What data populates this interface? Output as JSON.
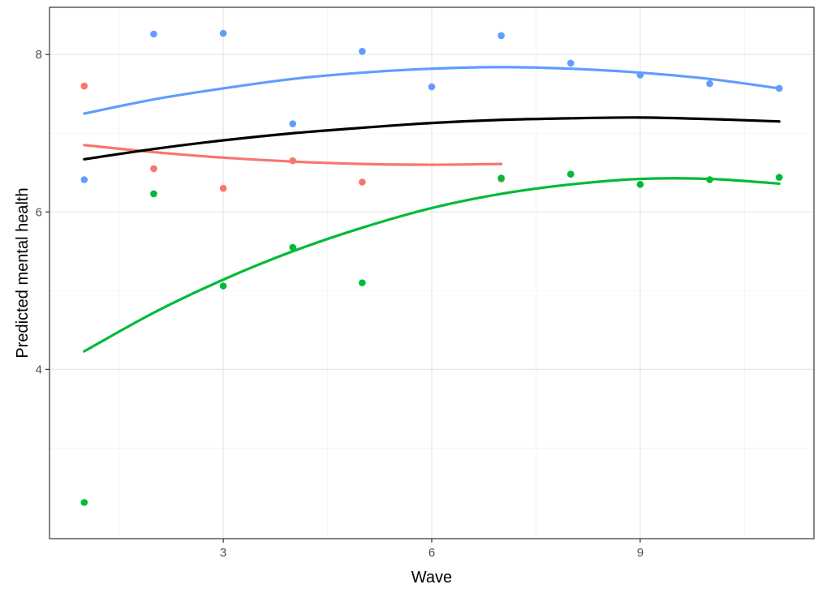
{
  "chart_data": {
    "type": "scatter",
    "title": "",
    "xlabel": "Wave",
    "ylabel": "Predicted mental health",
    "xlim": [
      0.5,
      11.5
    ],
    "ylim": [
      1.85,
      8.6
    ],
    "x_ticks": [
      3,
      6,
      9
    ],
    "x_tick_labels": [
      "3",
      "6",
      "9"
    ],
    "y_ticks": [
      4,
      6,
      8
    ],
    "y_tick_labels": [
      "4",
      "6",
      "8"
    ],
    "x_minor_ticks": [
      1.5,
      4.5,
      7.5,
      10.5
    ],
    "y_minor_ticks": [
      3,
      5,
      7
    ],
    "grid": true,
    "legend": "none",
    "series": [
      {
        "color": "#F8766D",
        "points": [
          [
            1,
            7.6
          ],
          [
            2,
            6.55
          ],
          [
            3,
            6.3
          ],
          [
            4,
            6.65
          ],
          [
            5,
            6.38
          ],
          [
            7,
            6.42
          ]
        ],
        "fit": [
          [
            1,
            6.85
          ],
          [
            2,
            6.76
          ],
          [
            3,
            6.69
          ],
          [
            4,
            6.64
          ],
          [
            5,
            6.61
          ],
          [
            6,
            6.6
          ],
          [
            7,
            6.61
          ]
        ]
      },
      {
        "color": "#619CFF",
        "points": [
          [
            1,
            6.41
          ],
          [
            2,
            8.26
          ],
          [
            3,
            8.27
          ],
          [
            4,
            7.12
          ],
          [
            5,
            8.04
          ],
          [
            6,
            7.59
          ],
          [
            7,
            8.24
          ],
          [
            8,
            7.89
          ],
          [
            9,
            7.74
          ],
          [
            10,
            7.63
          ],
          [
            11,
            7.57
          ]
        ],
        "fit": [
          [
            1,
            7.25
          ],
          [
            2,
            7.43
          ],
          [
            3,
            7.57
          ],
          [
            4,
            7.69
          ],
          [
            5,
            7.77
          ],
          [
            6,
            7.82
          ],
          [
            7,
            7.84
          ],
          [
            8,
            7.82
          ],
          [
            9,
            7.77
          ],
          [
            10,
            7.69
          ],
          [
            11,
            7.57
          ]
        ]
      },
      {
        "color": "#00BA38",
        "points": [
          [
            1,
            2.31
          ],
          [
            2,
            6.23
          ],
          [
            3,
            5.06
          ],
          [
            4,
            5.55
          ],
          [
            5,
            5.1
          ],
          [
            7,
            6.43
          ],
          [
            8,
            6.48
          ],
          [
            9,
            6.35
          ],
          [
            10,
            6.41
          ],
          [
            11,
            6.44
          ]
        ],
        "fit": [
          [
            1,
            4.23
          ],
          [
            2,
            4.72
          ],
          [
            3,
            5.14
          ],
          [
            4,
            5.5
          ],
          [
            5,
            5.8
          ],
          [
            6,
            6.05
          ],
          [
            7,
            6.23
          ],
          [
            8,
            6.35
          ],
          [
            9,
            6.42
          ],
          [
            10,
            6.42
          ],
          [
            11,
            6.36
          ]
        ]
      },
      {
        "color": "#000000",
        "points": [],
        "fit": [
          [
            1,
            6.67
          ],
          [
            2,
            6.8
          ],
          [
            3,
            6.91
          ],
          [
            4,
            7.0
          ],
          [
            5,
            7.07
          ],
          [
            6,
            7.13
          ],
          [
            7,
            7.17
          ],
          [
            8,
            7.19
          ],
          [
            9,
            7.2
          ],
          [
            10,
            7.18
          ],
          [
            11,
            7.15
          ]
        ]
      }
    ]
  }
}
